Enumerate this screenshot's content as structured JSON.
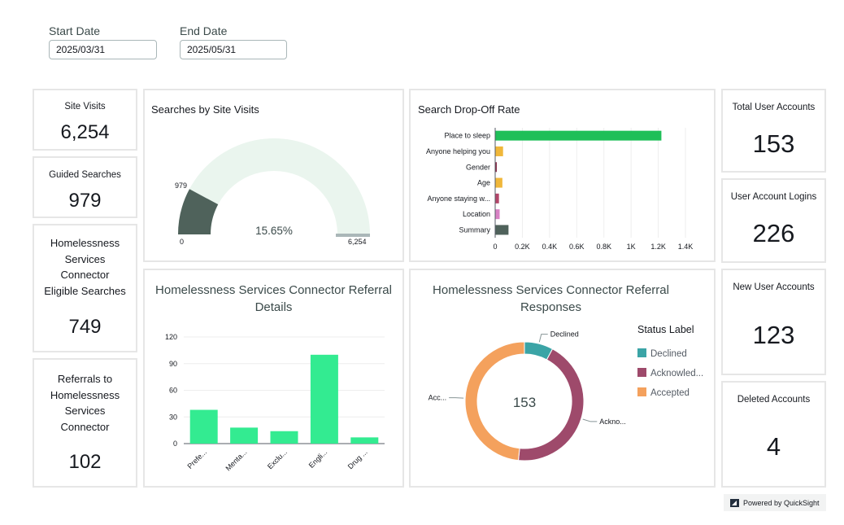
{
  "filters": {
    "start_label": "Start Date",
    "start_value": "2025/03/31",
    "end_label": "End Date",
    "end_value": "2025/05/31"
  },
  "kpis": {
    "site_visits": {
      "title": "Site Visits",
      "value": "6,254"
    },
    "guided_searches": {
      "title": "Guided Searches",
      "value": "979"
    },
    "eligible": {
      "title_lines": [
        "Homelessness",
        "Services",
        "Connector",
        "Eligible Searches"
      ],
      "value": "749"
    },
    "referrals": {
      "title_lines": [
        "Referrals to",
        "Homelessness",
        "Services",
        "Connector"
      ],
      "value": "102"
    },
    "total_users": {
      "title": "Total User Accounts",
      "value": "153"
    },
    "logins": {
      "title": "User Account Logins",
      "value": "226"
    },
    "new_accounts": {
      "title": "New User Accounts",
      "value": "123"
    },
    "deleted": {
      "title": "Deleted Accounts",
      "value": "4"
    }
  },
  "gauge": {
    "title": "Searches by Site Visits",
    "value": 979,
    "max": 6254,
    "value_label": "979",
    "min_label": "0",
    "max_label": "6,254",
    "percent_label": "15.65%",
    "fill_color": "#4f625b",
    "track_color": "#eaf5ee",
    "target_color": "#aab7b8"
  },
  "dropoff_chart": {
    "title": "Search Drop-Off Rate",
    "chart_data": {
      "type": "bar",
      "orientation": "horizontal",
      "categories": [
        "Place to sleep",
        "Anyone helping you",
        "Gender",
        "Age",
        "Anyone staying w...",
        "Location",
        "Summary"
      ],
      "values": [
        1220,
        55,
        8,
        50,
        25,
        30,
        95
      ],
      "colors": [
        "#1fbf58",
        "#f0b73a",
        "#8a2f4c",
        "#f0b73a",
        "#b3466a",
        "#d882c4",
        "#4f625b"
      ],
      "xticks": [
        "0",
        "0.2K",
        "0.4K",
        "0.6K",
        "0.8K",
        "1K",
        "1.2K",
        "1.4K"
      ],
      "xlim": [
        0,
        1400
      ]
    }
  },
  "referral_details": {
    "title_lines": [
      "Homelessness Services Connector Referral",
      "Details"
    ],
    "chart_data": {
      "type": "bar",
      "categories": [
        "Prefe...",
        "Menta...",
        "Exclu...",
        "Engli...",
        "Drug ..."
      ],
      "values": [
        38,
        18,
        14,
        100,
        7
      ],
      "yticks": [
        "0",
        "30",
        "60",
        "90",
        "120"
      ],
      "ylim": [
        0,
        120
      ],
      "color": "#33eb91"
    }
  },
  "referral_responses": {
    "title_lines": [
      "Homelessness Services Connector Referral",
      "Responses"
    ],
    "center_label": "153",
    "legend_title": "Status Label",
    "chart_data": {
      "type": "pie",
      "donut": true,
      "total": 153,
      "slices": [
        {
          "name": "Declined",
          "legend_label": "Declined",
          "callout": "Declined",
          "value": 12,
          "color": "#3ba4a6"
        },
        {
          "name": "Acknowledged",
          "legend_label": "Acknowled...",
          "callout": "Ackno...",
          "value": 67,
          "color": "#9e4a6b"
        },
        {
          "name": "Accepted",
          "legend_label": "Accepted",
          "callout": "Acc...",
          "value": 74,
          "color": "#f4a15d"
        }
      ]
    }
  },
  "footer": {
    "powered_by": "Powered by QuickSight"
  }
}
